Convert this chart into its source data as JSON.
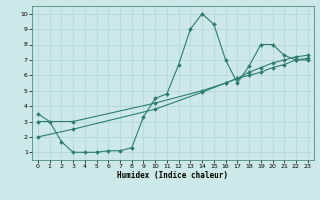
{
  "xlabel": "Humidex (Indice chaleur)",
  "bg_color": "#cde8e8",
  "grid_color": "#b0d4d4",
  "line_color": "#2e7d6e",
  "xlim": [
    -0.5,
    23.5
  ],
  "ylim": [
    0.5,
    10.5
  ],
  "xticks": [
    0,
    1,
    2,
    3,
    4,
    5,
    6,
    7,
    8,
    9,
    10,
    11,
    12,
    13,
    14,
    15,
    16,
    17,
    18,
    19,
    20,
    21,
    22,
    23
  ],
  "yticks": [
    1,
    2,
    3,
    4,
    5,
    6,
    7,
    8,
    9,
    10
  ],
  "curve1_x": [
    0,
    1,
    2,
    3,
    4,
    5,
    6,
    7,
    8,
    9,
    10,
    11,
    12,
    13,
    14,
    15,
    16,
    17,
    18,
    19,
    20,
    21,
    22,
    23
  ],
  "curve1_y": [
    3.5,
    3.0,
    1.7,
    1.0,
    1.0,
    1.0,
    1.1,
    1.1,
    1.3,
    3.3,
    4.5,
    4.8,
    6.7,
    9.0,
    10.0,
    9.3,
    7.0,
    5.5,
    6.6,
    8.0,
    8.0,
    7.3,
    7.0,
    7.0
  ],
  "curve2_x": [
    0,
    3,
    10,
    14,
    16,
    17,
    18,
    19,
    20,
    21,
    22,
    23
  ],
  "curve2_y": [
    2.0,
    2.5,
    3.8,
    4.9,
    5.5,
    5.8,
    6.0,
    6.2,
    6.5,
    6.7,
    7.0,
    7.1
  ],
  "curve3_x": [
    0,
    3,
    10,
    14,
    16,
    17,
    18,
    19,
    20,
    21,
    22,
    23
  ],
  "curve3_y": [
    3.0,
    3.0,
    4.2,
    5.0,
    5.5,
    5.8,
    6.2,
    6.5,
    6.8,
    7.0,
    7.2,
    7.3
  ]
}
